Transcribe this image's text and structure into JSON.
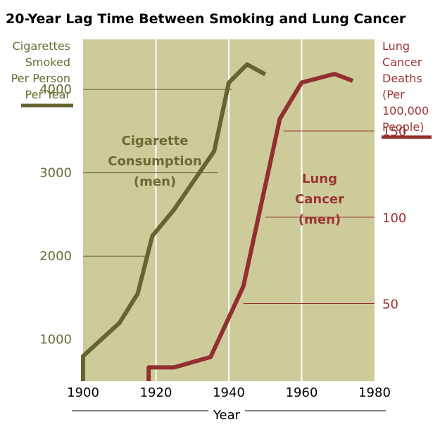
{
  "chart_data": {
    "type": "line",
    "title": "20-Year Lag Time Between Smoking and Lung Cancer",
    "xlabel": "Year",
    "xlim": [
      1900,
      1980
    ],
    "x_ticks": [
      1900,
      1920,
      1940,
      1960,
      1980
    ],
    "y_left": {
      "label_lines": [
        "Cigarettes",
        "Smoked",
        "Per Person",
        "Per Year"
      ],
      "ylim": [
        500,
        4600
      ],
      "ticks": [
        1000,
        2000,
        3000,
        4000
      ]
    },
    "y_right": {
      "label_lines": [
        "Lung",
        "Cancer",
        "Deaths",
        "(Per",
        "100,000",
        "People)"
      ],
      "ylim": [
        5,
        203
      ],
      "ticks": [
        50,
        100,
        150
      ]
    },
    "series": [
      {
        "axis": "left",
        "color": "#656432",
        "annotation": [
          "Cigarette",
          "Consumption",
          "(men)"
        ],
        "x": [
          1900,
          1900,
          1910,
          1915,
          1919,
          1925,
          1936,
          1940,
          1945,
          1950
        ],
        "y": [
          500,
          800,
          1200,
          1550,
          2240,
          2560,
          3260,
          4080,
          4300,
          4180
        ]
      },
      {
        "axis": "right",
        "color": "#922f2f",
        "annotation": [
          "Lung",
          "Cancer",
          "(men)"
        ],
        "x": [
          1918,
          1918,
          1925,
          1935,
          1944,
          1954,
          1960,
          1969,
          1974
        ],
        "y": [
          5,
          13,
          13,
          19,
          60,
          157,
          178,
          183,
          179
        ]
      }
    ],
    "grid": {
      "vertical": true,
      "horizontal_guides": true
    },
    "colors": {
      "plot_bg": "#cdcb9a",
      "grid": "#ffffff",
      "guide": "#656432"
    }
  }
}
